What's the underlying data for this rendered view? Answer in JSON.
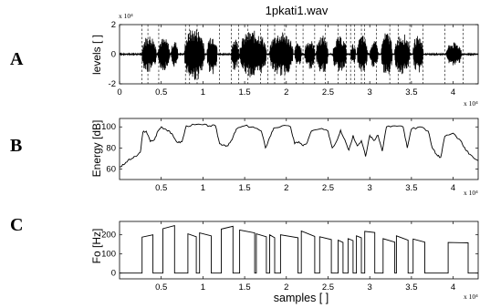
{
  "figure": {
    "title": "1pkati1.wav",
    "xlabel": "samples [ ]",
    "x_exponent": "x 10⁴",
    "panels": [
      {
        "letter": "A",
        "ylabel": "levels [ ]",
        "scale_label": "x 10⁴"
      },
      {
        "letter": "B",
        "ylabel": "Energy [dB]"
      },
      {
        "letter": "C",
        "ylabel": "Fo [Hz]"
      }
    ]
  },
  "chart_data": [
    {
      "type": "line",
      "panel": "A",
      "title": "1pkati1.wav",
      "ylabel": "levels [ ]",
      "xlabel": "",
      "xlim": [
        0,
        4.3
      ],
      "ylim": [
        -2,
        2
      ],
      "x_scale_note": "x 10⁴",
      "y_scale_note": "x 10⁴",
      "x_ticks": [
        "0",
        "0.5",
        "1",
        "1.5",
        "2",
        "2.5",
        "3",
        "3.5",
        "4"
      ],
      "y_ticks": [
        "-2",
        "0",
        "2"
      ],
      "segment_boundaries": [
        0.27,
        0.34,
        0.47,
        0.79,
        0.84,
        0.93,
        1.2,
        1.34,
        1.43,
        1.54,
        1.69,
        1.78,
        1.86,
        1.98,
        2.12,
        2.2,
        2.34,
        2.47,
        2.62,
        2.72,
        2.77,
        2.82,
        2.9,
        2.94,
        3.08,
        3.24,
        3.34,
        3.48,
        3.64,
        3.9,
        4.12
      ],
      "series": [
        {
          "bursts": [
            {
              "start": 0.27,
              "end": 0.44,
              "amp": 1.3
            },
            {
              "start": 0.46,
              "end": 0.6,
              "amp": 1.1
            },
            {
              "start": 0.62,
              "end": 0.7,
              "amp": 0.9
            },
            {
              "start": 0.78,
              "end": 1.02,
              "amp": 1.8
            },
            {
              "start": 1.05,
              "end": 1.17,
              "amp": 1.4
            },
            {
              "start": 1.34,
              "end": 1.43,
              "amp": 1.1
            },
            {
              "start": 1.44,
              "end": 1.76,
              "amp": 1.6
            },
            {
              "start": 1.8,
              "end": 2.08,
              "amp": 1.5
            },
            {
              "start": 2.1,
              "end": 2.18,
              "amp": 0.8
            },
            {
              "start": 2.22,
              "end": 2.34,
              "amp": 1.0
            },
            {
              "start": 2.36,
              "end": 2.5,
              "amp": 1.3
            },
            {
              "start": 2.56,
              "end": 2.72,
              "amp": 1.2
            },
            {
              "start": 2.77,
              "end": 2.83,
              "amp": 0.7
            },
            {
              "start": 2.85,
              "end": 2.97,
              "amp": 1.3
            },
            {
              "start": 3.0,
              "end": 3.1,
              "amp": 0.9
            },
            {
              "start": 3.14,
              "end": 3.27,
              "amp": 1.5
            },
            {
              "start": 3.3,
              "end": 3.48,
              "amp": 1.4
            },
            {
              "start": 3.52,
              "end": 3.64,
              "amp": 1.3
            },
            {
              "start": 3.92,
              "end": 4.1,
              "amp": 0.8
            }
          ],
          "noise_amp": 0.05
        }
      ]
    },
    {
      "type": "line",
      "panel": "B",
      "ylabel": "Energy [dB]",
      "xlabel": "",
      "xlim": [
        0,
        4.3
      ],
      "ylim": [
        50,
        108
      ],
      "x_scale_note": "x 10⁴",
      "x_ticks": [
        "0.5",
        "1",
        "1.5",
        "2",
        "2.5",
        "3",
        "3.5",
        "4"
      ],
      "y_ticks": [
        "60",
        "80",
        "100"
      ],
      "series": [
        {
          "x": [
            0,
            0.05,
            0.1,
            0.15,
            0.2,
            0.25,
            0.28,
            0.32,
            0.37,
            0.42,
            0.46,
            0.5,
            0.55,
            0.6,
            0.65,
            0.7,
            0.75,
            0.8,
            0.9,
            1.0,
            1.08,
            1.15,
            1.2,
            1.25,
            1.3,
            1.35,
            1.4,
            1.5,
            1.6,
            1.7,
            1.75,
            1.8,
            1.85,
            1.95,
            2.05,
            2.1,
            2.15,
            2.2,
            2.25,
            2.3,
            2.4,
            2.5,
            2.55,
            2.6,
            2.65,
            2.7,
            2.75,
            2.8,
            2.85,
            2.9,
            2.95,
            3.0,
            3.05,
            3.1,
            3.15,
            3.2,
            3.3,
            3.4,
            3.45,
            3.5,
            3.6,
            3.7,
            3.75,
            3.8,
            3.85,
            3.9,
            4.0,
            4.1,
            4.15,
            4.2,
            4.3
          ],
          "y": [
            62,
            64,
            68,
            70,
            72,
            76,
            95,
            96,
            86,
            88,
            96,
            100,
            98,
            96,
            90,
            85,
            86,
            101,
            102,
            102,
            101,
            101,
            84,
            83,
            82,
            88,
            98,
            101,
            100,
            96,
            80,
            90,
            99,
            101,
            100,
            84,
            86,
            82,
            85,
            96,
            98,
            96,
            80,
            86,
            97,
            88,
            78,
            92,
            82,
            87,
            72,
            92,
            87,
            92,
            77,
            100,
            101,
            100,
            80,
            98,
            100,
            96,
            80,
            74,
            71,
            91,
            94,
            86,
            78,
            74,
            68
          ]
        }
      ]
    },
    {
      "type": "line",
      "panel": "C",
      "ylabel": "Fo [Hz]",
      "xlabel": "samples [ ]",
      "xlim": [
        0,
        4.3
      ],
      "ylim": [
        -30,
        270
      ],
      "x_scale_note": "x 10⁴",
      "x_ticks": [
        "0.5",
        "1",
        "1.5",
        "2",
        "2.5",
        "3",
        "3.5",
        "4"
      ],
      "y_ticks": [
        "0",
        "100",
        "200"
      ],
      "series": [
        {
          "segments": [
            {
              "start": 0.27,
              "end": 0.4,
              "f0": [
                188,
                200
              ]
            },
            {
              "start": 0.52,
              "end": 0.66,
              "f0": [
                232,
                248
              ]
            },
            {
              "start": 0.82,
              "end": 0.92,
              "f0": [
                205,
                190
              ]
            },
            {
              "start": 0.96,
              "end": 1.1,
              "f0": [
                210,
                195
              ]
            },
            {
              "start": 1.22,
              "end": 1.36,
              "f0": [
                230,
                245
              ]
            },
            {
              "start": 1.44,
              "end": 1.62,
              "f0": [
                225,
                210
              ]
            },
            {
              "start": 1.64,
              "end": 1.76,
              "f0": [
                205,
                190
              ]
            },
            {
              "start": 1.8,
              "end": 1.86,
              "f0": [
                200,
                185
              ]
            },
            {
              "start": 1.93,
              "end": 2.14,
              "f0": [
                200,
                185
              ]
            },
            {
              "start": 2.18,
              "end": 2.34,
              "f0": [
                220,
                192
              ]
            },
            {
              "start": 2.4,
              "end": 2.54,
              "f0": [
                190,
                175
              ]
            },
            {
              "start": 2.62,
              "end": 2.68,
              "f0": [
                172,
                160
              ]
            },
            {
              "start": 2.74,
              "end": 2.8,
              "f0": [
                180,
                170
              ]
            },
            {
              "start": 2.84,
              "end": 2.9,
              "f0": [
                195,
                185
              ]
            },
            {
              "start": 2.94,
              "end": 3.06,
              "f0": [
                218,
                212
              ]
            },
            {
              "start": 3.16,
              "end": 3.3,
              "f0": [
                180,
                162
              ]
            },
            {
              "start": 3.32,
              "end": 3.46,
              "f0": [
                195,
                172
              ]
            },
            {
              "start": 3.52,
              "end": 3.66,
              "f0": [
                178,
                162
              ]
            },
            {
              "start": 3.94,
              "end": 4.18,
              "f0": [
                160,
                158
              ]
            }
          ]
        }
      ]
    }
  ]
}
